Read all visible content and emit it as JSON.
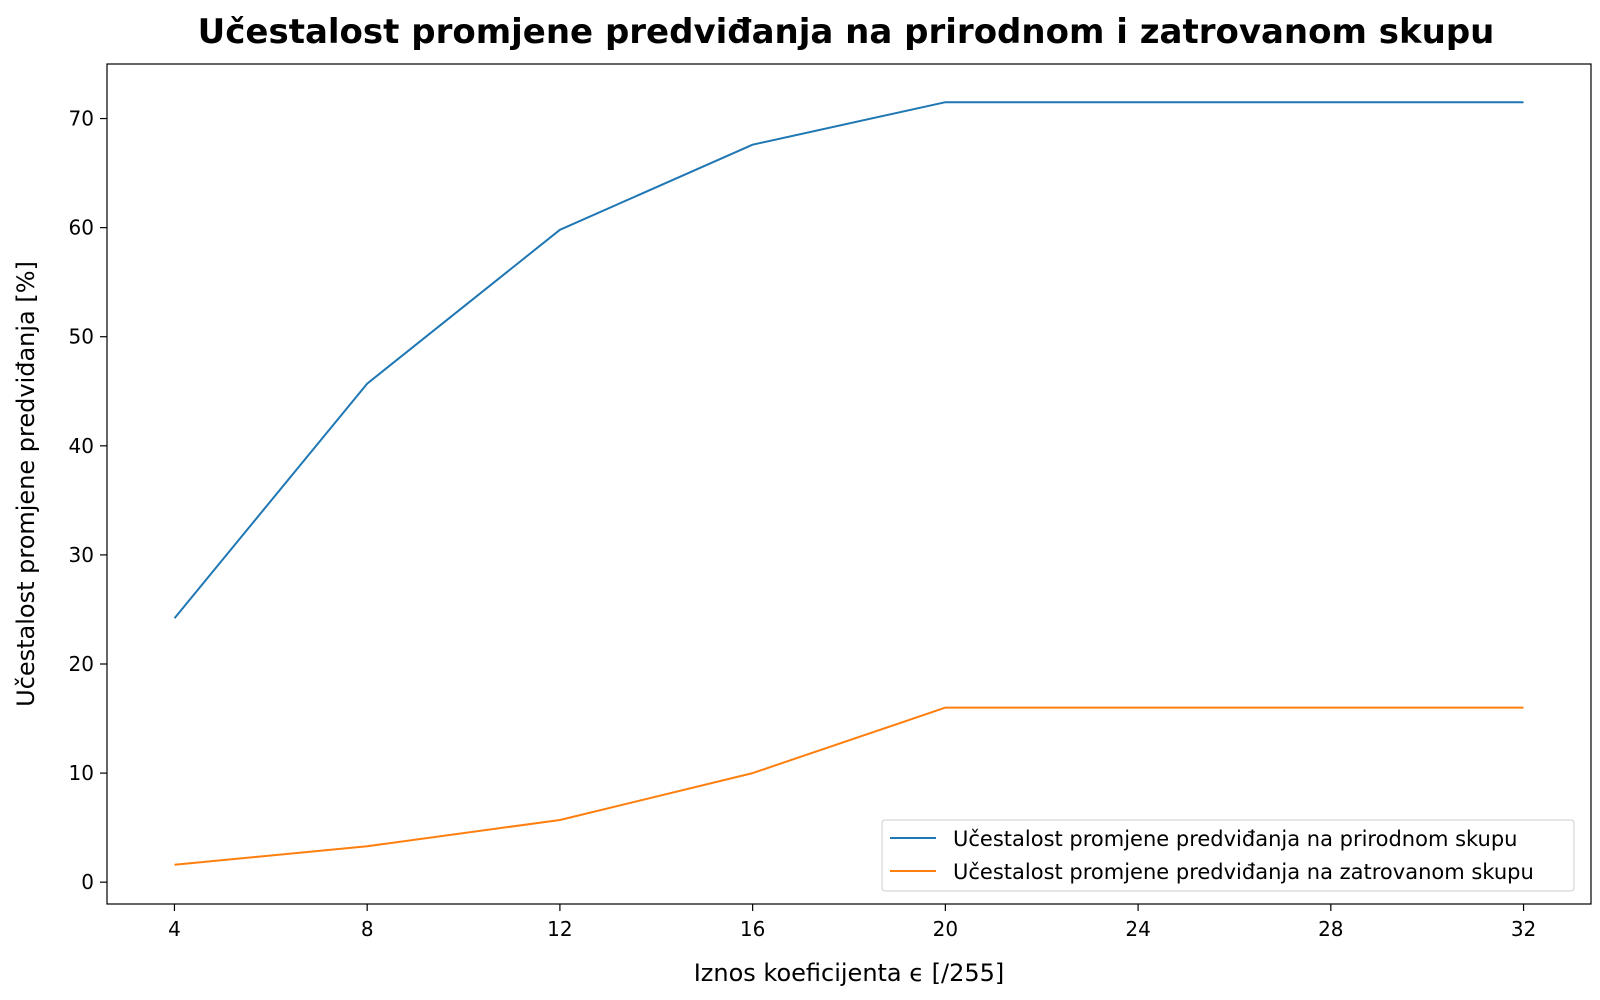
{
  "chart_data": {
    "type": "line",
    "title": "Učestalost promjene predviđanja na prirodnom i zatrovanom skupu",
    "xlabel": "Iznos koeficijenta ϵ [/255]",
    "ylabel": "Učestalost promjene predviđanja [%]",
    "x": [
      4,
      8,
      12,
      16,
      20,
      24,
      28,
      32
    ],
    "xticks": [
      "4",
      "8",
      "12",
      "16",
      "20",
      "24",
      "28",
      "32"
    ],
    "yticks": [
      "0",
      "10",
      "20",
      "30",
      "40",
      "50",
      "60",
      "70"
    ],
    "xlim": [
      2.6,
      33.4
    ],
    "ylim": [
      -2,
      75
    ],
    "grid": false,
    "legend_position": "lower-right",
    "series": [
      {
        "name": "Učestalost promjene predviđanja na prirodnom skupu",
        "color": "#1f77b4",
        "values": [
          24.2,
          45.7,
          59.8,
          67.6,
          71.5,
          71.5,
          71.5,
          71.5
        ]
      },
      {
        "name": "Učestalost promjene predviđanja na zatrovanom skupu",
        "color": "#ff7f0e",
        "values": [
          1.6,
          3.3,
          5.7,
          10.0,
          16.0,
          16.0,
          16.0,
          16.0
        ]
      }
    ]
  }
}
